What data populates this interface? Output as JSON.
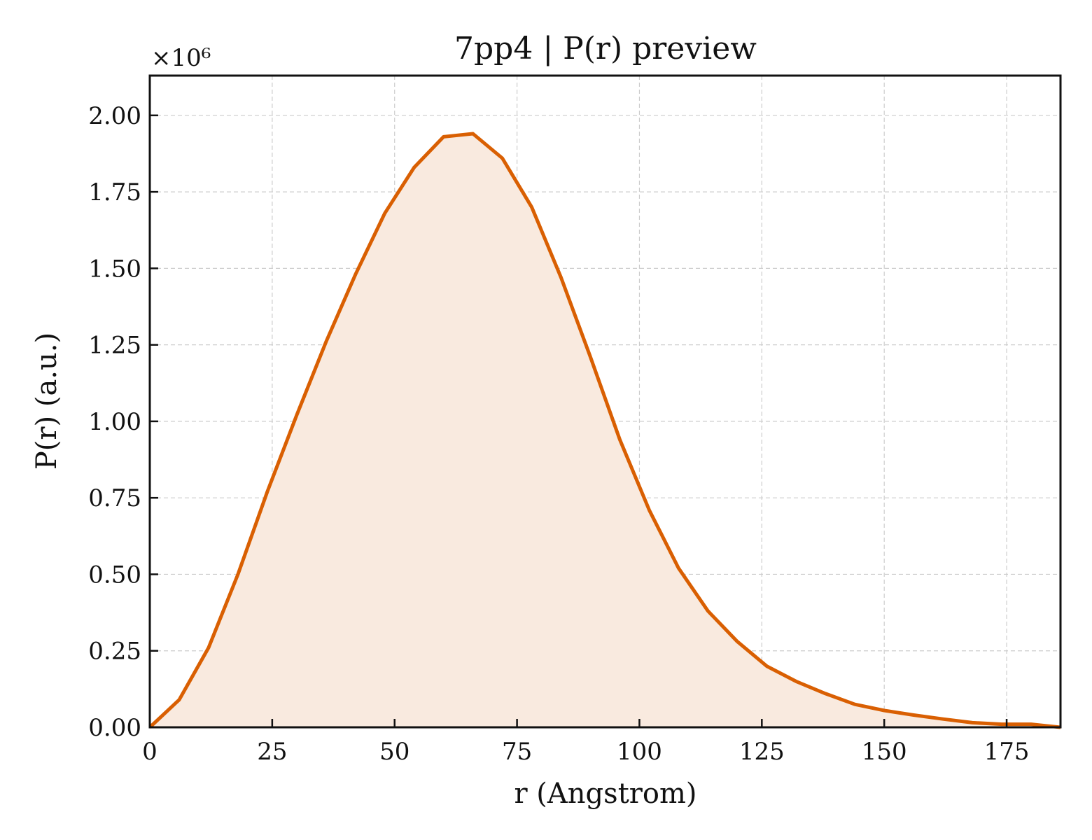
{
  "chart_data": {
    "type": "area",
    "title": "7pp4 | P(r) preview",
    "xlabel": "r (Angstrom)",
    "ylabel": "P(r) (a.u.)",
    "y_offset_label": "×10⁶",
    "xlim": [
      0,
      186
    ],
    "ylim": [
      0,
      2.13
    ],
    "xticks": [
      0,
      25,
      50,
      75,
      100,
      125,
      150,
      175
    ],
    "yticks": [
      0.0,
      0.25,
      0.5,
      0.75,
      1.0,
      1.25,
      1.5,
      1.75,
      2.0
    ],
    "xtick_labels": [
      "0",
      "25",
      "50",
      "75",
      "100",
      "125",
      "150",
      "175"
    ],
    "ytick_labels": [
      "0.00",
      "0.25",
      "0.50",
      "0.75",
      "1.00",
      "1.25",
      "1.50",
      "1.75",
      "2.00"
    ],
    "grid": true,
    "line_color": "#d95f02",
    "fill_color": "#f9eadf",
    "x": [
      0,
      6,
      12,
      18,
      24,
      30,
      36,
      42,
      48,
      54,
      60,
      66,
      72,
      78,
      84,
      90,
      96,
      102,
      108,
      114,
      120,
      126,
      132,
      138,
      144,
      150,
      156,
      162,
      168,
      174,
      180,
      186
    ],
    "y": [
      0.0,
      0.09,
      0.26,
      0.5,
      0.77,
      1.02,
      1.26,
      1.48,
      1.68,
      1.83,
      1.93,
      1.94,
      1.86,
      1.7,
      1.47,
      1.21,
      0.94,
      0.71,
      0.52,
      0.38,
      0.28,
      0.2,
      0.15,
      0.11,
      0.075,
      0.055,
      0.04,
      0.027,
      0.015,
      0.01,
      0.01,
      0.0
    ]
  }
}
